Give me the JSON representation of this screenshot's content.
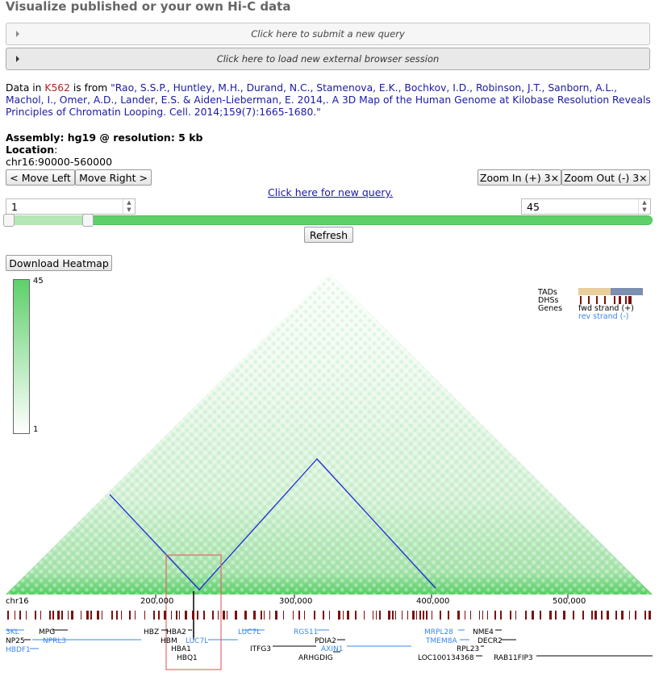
{
  "page": {
    "title": "Visualize published or your own Hi-C data"
  },
  "accordions": [
    {
      "label": "Click here to submit a new query"
    },
    {
      "label": "Click here to load new external browser session"
    }
  ],
  "citation": {
    "prefix": "Data in ",
    "cell": "K562",
    "mid": " is from ",
    "reference": "\"Rao, S.S.P., Huntley, M.H., Durand, N.C., Stamenova, E.K., Bochkov, I.D., Robinson, J.T., Sanborn, A.L., Machol, I., Omer, A.D., Lander, E.S. & Aiden-Lieberman, E. 2014,. A 3D Map of the Human Genome at Kilobase Resolution Reveals Principles of Chromatin Looping. Cell. 2014;159(7):1665-1680.\""
  },
  "assembly": {
    "label": "Assembly: hg19 @ resolution: 5 kb"
  },
  "location": {
    "label": "Location",
    "colon": ":",
    "value": "chr16:90000-560000"
  },
  "nav": {
    "move_left": "< Move Left",
    "move_right": "Move Right >",
    "zoom_in": "Zoom In (+) 3×",
    "zoom_out": "Zoom Out (-) 3×",
    "new_query": "Click here for new query.",
    "refresh": "Refresh",
    "download": "Download Heatmap"
  },
  "range": {
    "min_value": "1",
    "max_value": "45",
    "low_fraction": 0.125,
    "high_fraction": 1.0
  },
  "color_legend": {
    "max": "45",
    "min": "1",
    "high_color": "#5ed06a",
    "low_color": "#ffffff"
  },
  "track_legend": {
    "tads": "TADs",
    "dhss": "DHSs",
    "genes": "Genes",
    "fwd": "fwd strand (+)",
    "rev": "rev strand (-)",
    "tad_colors": [
      "#e8cf9c",
      "#7b8fb0"
    ],
    "dhs_color": "#7a1010",
    "rev_color": "#3a87e8"
  },
  "axis": {
    "chrom": "chr16",
    "ticks": [
      "200,000",
      "300,000",
      "400,000",
      "500,000"
    ]
  },
  "genes": [
    {
      "name": "3KL",
      "strand": "-"
    },
    {
      "name": "MPG",
      "strand": "+"
    },
    {
      "name": "NP25",
      "strand": "+"
    },
    {
      "name": "NPRL3",
      "strand": "-"
    },
    {
      "name": "HBDF1",
      "strand": "-"
    },
    {
      "name": "HBZ",
      "strand": "+"
    },
    {
      "name": "HBA2",
      "strand": "+"
    },
    {
      "name": "HBM",
      "strand": "+"
    },
    {
      "name": "HBA1",
      "strand": "+"
    },
    {
      "name": "HBQ1",
      "strand": "+"
    },
    {
      "name": "LUC7L",
      "strand": "-"
    },
    {
      "name": "LUC7L",
      "strand": "-"
    },
    {
      "name": "ITFG3",
      "strand": "+"
    },
    {
      "name": "RGS11",
      "strand": "-"
    },
    {
      "name": "PDIA2",
      "strand": "+"
    },
    {
      "name": "AXIN1",
      "strand": "-"
    },
    {
      "name": "ARHGDIG",
      "strand": "+"
    },
    {
      "name": "MRPL28",
      "strand": "-"
    },
    {
      "name": "TMEM8A",
      "strand": "-"
    },
    {
      "name": "NME4",
      "strand": "+"
    },
    {
      "name": "DECR2",
      "strand": "+"
    },
    {
      "name": "RPL23",
      "strand": "+"
    },
    {
      "name": "LOC100134368",
      "strand": "+"
    },
    {
      "name": "RAB11FIP3",
      "strand": "+"
    }
  ]
}
